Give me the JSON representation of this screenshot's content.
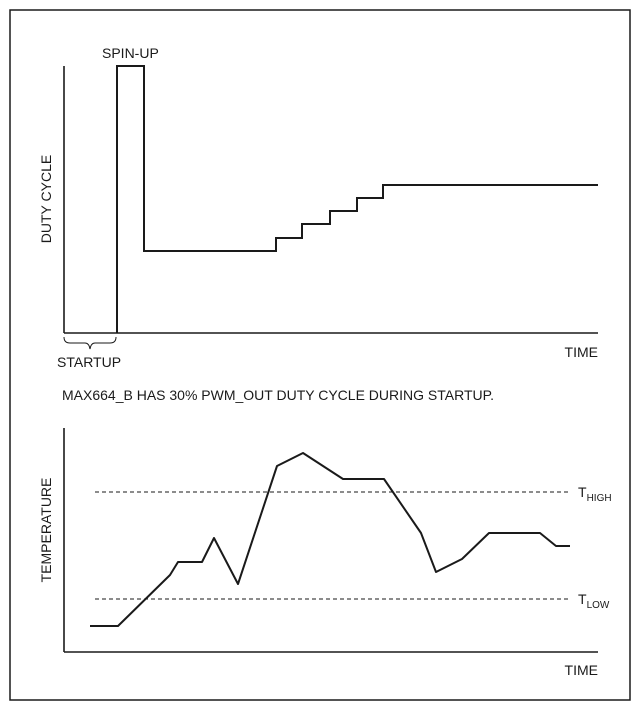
{
  "top_chart": {
    "ylabel": "DUTY CYCLE",
    "xlabel": "TIME",
    "spinup_label": "SPIN-UP",
    "startup_label": "STARTUP"
  },
  "note": "MAX664_B HAS 30% PWM_OUT DUTY CYCLE DURING STARTUP.",
  "bottom_chart": {
    "ylabel": "TEMPERATURE",
    "xlabel": "TIME",
    "thigh": {
      "main": "T",
      "sub": "HIGH"
    },
    "tlow": {
      "main": "T",
      "sub": "LOW"
    }
  }
}
